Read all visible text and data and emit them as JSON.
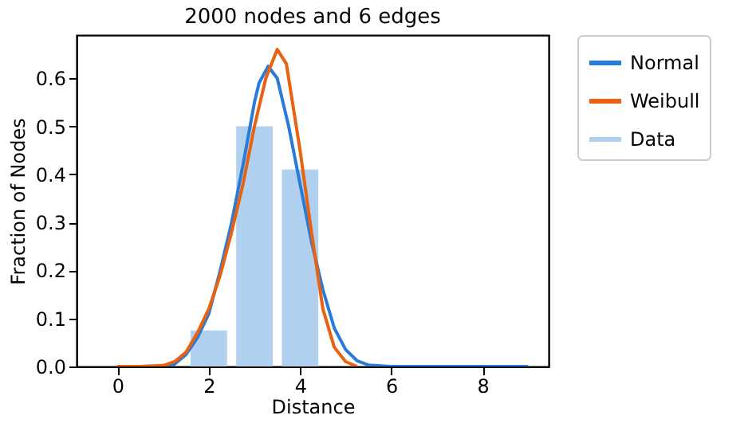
{
  "chart_data": {
    "type": "bar",
    "title": "2000 nodes and 6 edges",
    "xlabel": "Distance",
    "ylabel": "Fraction of Nodes",
    "xlim": [
      -0.9,
      9.45
    ],
    "ylim": [
      0,
      0.69
    ],
    "xticks": [
      0,
      2,
      4,
      6,
      8
    ],
    "yticks": [
      {
        "value": 0,
        "label": "0.0"
      },
      {
        "value": 0.1,
        "label": "0.1"
      },
      {
        "value": 0.2,
        "label": "0.2"
      },
      {
        "value": 0.3,
        "label": "0.3"
      },
      {
        "value": 0.4,
        "label": "0.4"
      },
      {
        "value": 0.5,
        "label": "0.5"
      },
      {
        "value": 0.6,
        "label": "0.6"
      }
    ],
    "grid": false,
    "legend": "top right",
    "series": [
      {
        "name": "Normal",
        "type": "line",
        "color": "#2a7ad8",
        "x": [
          0,
          0.5,
          1.0,
          1.25,
          1.5,
          1.75,
          2.0,
          2.25,
          2.5,
          2.75,
          3.0,
          3.1,
          3.3,
          3.5,
          3.75,
          4.0,
          4.25,
          4.5,
          4.75,
          5.0,
          5.25,
          5.5,
          6.0,
          7.0,
          8.0,
          9.0
        ],
        "values": [
          0,
          0,
          0.001,
          0.005,
          0.025,
          0.06,
          0.11,
          0.2,
          0.3,
          0.42,
          0.55,
          0.59,
          0.625,
          0.6,
          0.5,
          0.38,
          0.26,
          0.16,
          0.08,
          0.035,
          0.012,
          0.003,
          0,
          0,
          0,
          0
        ]
      },
      {
        "name": "Weibull",
        "type": "line",
        "color": "#e8620f",
        "x": [
          0,
          0.5,
          1.0,
          1.25,
          1.5,
          1.75,
          2.0,
          2.25,
          2.5,
          2.75,
          3.0,
          3.25,
          3.5,
          3.7,
          4.0,
          4.25,
          4.5,
          4.75,
          5.0,
          5.25
        ],
        "values": [
          0,
          0,
          0.002,
          0.01,
          0.03,
          0.07,
          0.12,
          0.19,
          0.28,
          0.38,
          0.5,
          0.6,
          0.66,
          0.63,
          0.45,
          0.28,
          0.12,
          0.04,
          0.01,
          0
        ]
      },
      {
        "name": "Data",
        "color": "#b0d0f0",
        "x": [
          2,
          3,
          4
        ],
        "values": [
          0.075,
          0.5,
          0.41
        ]
      }
    ]
  }
}
